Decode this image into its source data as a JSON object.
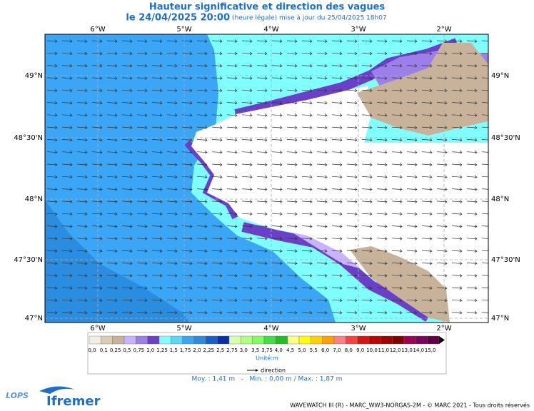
{
  "header": {
    "title": "Hauteur significative et direction des vagues",
    "date": "le 24/04/2025 20:00",
    "note": "(heure légale) mise à jour du 25/04/2025 18h07"
  },
  "map": {
    "lon_labels": [
      "6°W",
      "5°W",
      "4°W",
      "3°W",
      "2°W"
    ],
    "lat_labels": [
      "49°N",
      "48°30'N",
      "48°N",
      "47°30'N",
      "47°N"
    ]
  },
  "legend": {
    "labels": [
      "0,0",
      "0,1",
      "0,25",
      "0,5",
      "0,75",
      "1,0",
      "1,25",
      "1,5",
      "1,75",
      "2,0",
      "2,25",
      "2,5",
      "2,75",
      "3,0",
      "3,5",
      "3,75",
      "4,0",
      "4,5",
      "5,0",
      "5,5",
      "6,0",
      "7,0",
      "8,0",
      "9,0",
      "10,0",
      "11,0",
      "12,0",
      "13,0",
      "14,0",
      "15,0"
    ],
    "colors": [
      "#f3ede4",
      "#dccbb6",
      "#c8b39a",
      "#c9b3ff",
      "#9c7fe8",
      "#6a3fc9",
      "#80ffff",
      "#5ad8f5",
      "#3ba6f5",
      "#2a8de0",
      "#1560d0",
      "#0a2ea8",
      "#d8ffb0",
      "#b0ff80",
      "#80ff60",
      "#40e040",
      "#20c020",
      "#ffff80",
      "#ffff00",
      "#ffd000",
      "#ffa000",
      "#ff8080",
      "#ff4040",
      "#e01010",
      "#c00000",
      "#a00000",
      "#800000",
      "#a00050",
      "#800060",
      "#600040"
    ],
    "unit": "Unité:m",
    "direction": "direction"
  },
  "stats": "Moy. : 1,41 m   -   Min. : 0,00 m / Max. : 1,87 m",
  "footer": {
    "credits": "WAVEWATCH III (R) - MARC_WW3-NORGAS-2M - © MARC 2021 - Tous droits réservés",
    "lops": "LOPS",
    "ifremer": "Ifremer"
  }
}
